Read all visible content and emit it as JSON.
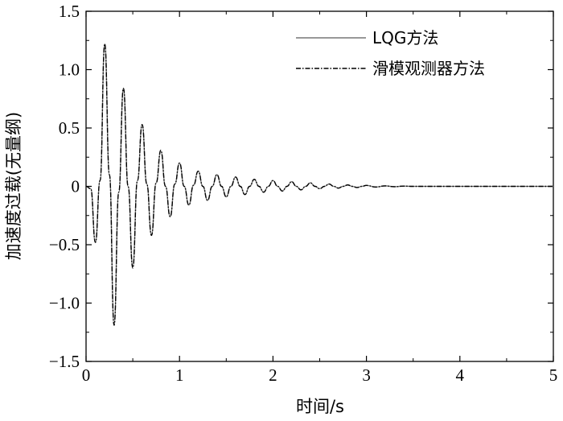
{
  "chart_data": {
    "type": "line",
    "title": "",
    "xlabel": "时间/s",
    "ylabel": "加速度过载(无量纲)",
    "xlim": [
      0,
      5
    ],
    "ylim": [
      -1.5,
      1.5
    ],
    "xticks": [
      0,
      1,
      2,
      3,
      4,
      5
    ],
    "xtick_labels": [
      "0",
      "1",
      "2",
      "3",
      "4",
      "5"
    ],
    "yticks": [
      -1.5,
      -1.0,
      -0.5,
      0,
      0.5,
      1.0,
      1.5
    ],
    "ytick_labels": [
      "−1.5",
      "−1.0",
      "−0.5",
      "0",
      "0.5",
      "1.0",
      "1.5"
    ],
    "grid": false,
    "legend_position": "top-right",
    "series": [
      {
        "name": "LQG方法",
        "style": "solid",
        "color": "#777777",
        "x": [
          0,
          0.05,
          0.1,
          0.15,
          0.2,
          0.25,
          0.3,
          0.35,
          0.4,
          0.45,
          0.5,
          0.55,
          0.6,
          0.65,
          0.7,
          0.75,
          0.8,
          0.85,
          0.9,
          0.95,
          1.0,
          1.05,
          1.1,
          1.15,
          1.2,
          1.25,
          1.3,
          1.35,
          1.4,
          1.45,
          1.5,
          1.55,
          1.6,
          1.65,
          1.7,
          1.75,
          1.8,
          1.85,
          1.9,
          1.95,
          2.0,
          2.05,
          2.1,
          2.15,
          2.2,
          2.25,
          2.3,
          2.35,
          2.4,
          2.45,
          2.5,
          2.55,
          2.6,
          2.65,
          2.7,
          2.75,
          2.8,
          2.85,
          2.9,
          2.95,
          3.0,
          3.1,
          3.2,
          3.3,
          3.4,
          3.5,
          4.0,
          4.5,
          5.0
        ],
        "y": [
          0,
          -0.02,
          -0.48,
          0.05,
          1.22,
          0.1,
          -1.18,
          -0.05,
          0.84,
          0.0,
          -0.69,
          0.05,
          0.53,
          0.02,
          -0.42,
          0.03,
          0.3,
          0.0,
          -0.26,
          0.02,
          0.2,
          0.0,
          -0.16,
          0.01,
          0.13,
          0.0,
          -0.12,
          0.0,
          0.1,
          0.0,
          -0.09,
          0.0,
          0.08,
          0.0,
          -0.07,
          0.0,
          0.06,
          0.0,
          -0.05,
          0.0,
          0.05,
          0.0,
          -0.04,
          0.0,
          0.04,
          0.0,
          -0.03,
          0.0,
          0.03,
          0.0,
          -0.02,
          0.0,
          0.02,
          0.0,
          -0.015,
          0.0,
          0.012,
          0.0,
          -0.01,
          0.0,
          0.008,
          -0.006,
          0.004,
          -0.003,
          0.002,
          0.0,
          0.0,
          0.0,
          0.0
        ]
      },
      {
        "name": "滑模观测器方法",
        "style": "dashdot",
        "color": "#000000",
        "x": [
          0,
          0.05,
          0.1,
          0.15,
          0.2,
          0.25,
          0.3,
          0.35,
          0.4,
          0.45,
          0.5,
          0.55,
          0.6,
          0.65,
          0.7,
          0.75,
          0.8,
          0.85,
          0.9,
          0.95,
          1.0,
          1.05,
          1.1,
          1.15,
          1.2,
          1.25,
          1.3,
          1.35,
          1.4,
          1.45,
          1.5,
          1.55,
          1.6,
          1.65,
          1.7,
          1.75,
          1.8,
          1.85,
          1.9,
          1.95,
          2.0,
          2.05,
          2.1,
          2.15,
          2.2,
          2.25,
          2.3,
          2.35,
          2.4,
          2.45,
          2.5,
          2.55,
          2.6,
          2.65,
          2.7,
          2.75,
          2.8,
          2.85,
          2.9,
          2.95,
          3.0,
          3.1,
          3.2,
          3.3,
          3.4,
          3.5,
          4.0,
          4.5,
          5.0
        ],
        "y": [
          0,
          -0.02,
          -0.48,
          0.05,
          1.22,
          0.1,
          -1.19,
          -0.05,
          0.84,
          0.0,
          -0.7,
          0.05,
          0.53,
          0.02,
          -0.42,
          0.03,
          0.31,
          0.0,
          -0.26,
          0.02,
          0.2,
          0.0,
          -0.16,
          0.01,
          0.13,
          0.0,
          -0.12,
          0.0,
          0.1,
          0.0,
          -0.09,
          0.0,
          0.08,
          0.0,
          -0.07,
          0.0,
          0.06,
          0.0,
          -0.05,
          0.0,
          0.05,
          0.0,
          -0.04,
          0.0,
          0.04,
          0.0,
          -0.03,
          0.0,
          0.03,
          0.0,
          -0.02,
          0.0,
          0.02,
          0.0,
          -0.015,
          0.0,
          0.012,
          0.0,
          -0.01,
          0.0,
          0.008,
          -0.006,
          0.004,
          -0.003,
          0.002,
          0.0,
          0.0,
          0.0,
          0.0
        ]
      }
    ]
  }
}
